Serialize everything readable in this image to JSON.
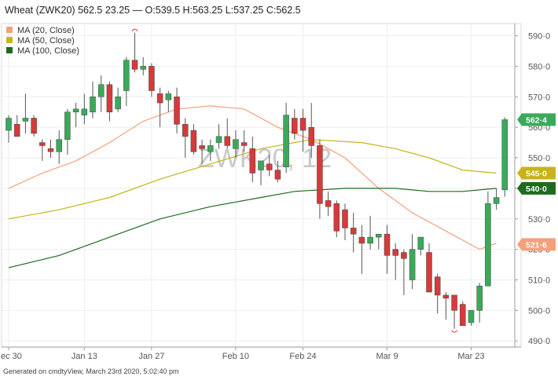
{
  "header": {
    "title": "Wheat (ZWK20) 562.5 23.25 — O:539.5 H:563.25 L:537.25 C:562.5"
  },
  "watermark": "ZWK20, 12",
  "footer": {
    "text": "Generated on cmdtyView, March 23rd 2020, 5:02:40 pm"
  },
  "colors": {
    "up": "#3aaa5a",
    "down": "#d63a3a",
    "ma20": "#f4a07a",
    "ma50": "#c8b418",
    "ma100": "#1f6a1f",
    "last": "#3aaa5a"
  },
  "chart_data": {
    "type": "candlestick",
    "title": "Wheat (ZWK20) 562.5 23.25 — O:539.5 H:563.25 L:537.25 C:562.5",
    "ylim": [
      488,
      594
    ],
    "y_ticks": [
      "590·0",
      "580·0",
      "570·0",
      "560·0",
      "550·0",
      "540·0",
      "530·0",
      "520·0",
      "510·0",
      "500·0",
      "490·0"
    ],
    "y_tick_values": [
      590,
      580,
      570,
      560,
      550,
      540,
      530,
      520,
      510,
      500,
      490
    ],
    "x_labels": [
      {
        "label": "ec 30",
        "index": 0
      },
      {
        "label": "Jan 13",
        "index": 9
      },
      {
        "label": "Jan 27",
        "index": 17
      },
      {
        "label": "Feb 10",
        "index": 27
      },
      {
        "label": "Feb 24",
        "index": 35
      },
      {
        "label": "Mar 9",
        "index": 45
      },
      {
        "label": "Mar 23",
        "index": 55
      }
    ],
    "legend": [
      {
        "name": "MA (20, Close)",
        "color": "#f4a07a"
      },
      {
        "name": "MA (50, Close)",
        "color": "#c8b418"
      },
      {
        "name": "MA (100, Close)",
        "color": "#1f6a1f"
      }
    ],
    "candles": [
      {
        "o": 559,
        "h": 564,
        "l": 555,
        "c": 563
      },
      {
        "o": 561,
        "h": 564,
        "l": 557,
        "c": 557
      },
      {
        "o": 562,
        "h": 571,
        "l": 558,
        "c": 563
      },
      {
        "o": 563,
        "h": 564,
        "l": 557,
        "c": 558
      },
      {
        "o": 555,
        "h": 556,
        "l": 549,
        "c": 554
      },
      {
        "o": 553,
        "h": 556,
        "l": 550,
        "c": 552
      },
      {
        "o": 552,
        "h": 559,
        "l": 548,
        "c": 556
      },
      {
        "o": 556,
        "h": 566,
        "l": 551,
        "c": 565
      },
      {
        "o": 565,
        "h": 568,
        "l": 560,
        "c": 566
      },
      {
        "o": 564,
        "h": 571,
        "l": 561,
        "c": 566
      },
      {
        "o": 565,
        "h": 575,
        "l": 563,
        "c": 570
      },
      {
        "o": 570,
        "h": 577,
        "l": 565,
        "c": 574
      },
      {
        "o": 574,
        "h": 575,
        "l": 562,
        "c": 565
      },
      {
        "o": 566,
        "h": 573,
        "l": 565,
        "c": 570
      },
      {
        "o": 572,
        "h": 583,
        "l": 567,
        "c": 582
      },
      {
        "o": 582,
        "h": 591,
        "l": 578,
        "c": 579
      },
      {
        "o": 579,
        "h": 583,
        "l": 577,
        "c": 580
      },
      {
        "o": 580,
        "h": 581,
        "l": 570,
        "c": 572
      },
      {
        "o": 571,
        "h": 573,
        "l": 560,
        "c": 568
      },
      {
        "o": 569,
        "h": 572,
        "l": 565,
        "c": 571
      },
      {
        "o": 570,
        "h": 573,
        "l": 558,
        "c": 561
      },
      {
        "o": 561,
        "h": 563,
        "l": 550,
        "c": 557
      },
      {
        "o": 559,
        "h": 561,
        "l": 551,
        "c": 552
      },
      {
        "o": 554,
        "h": 556,
        "l": 548,
        "c": 553
      },
      {
        "o": 552,
        "h": 556,
        "l": 549,
        "c": 554
      },
      {
        "o": 555,
        "h": 561,
        "l": 553,
        "c": 557
      },
      {
        "o": 557,
        "h": 563,
        "l": 553,
        "c": 554
      },
      {
        "o": 553,
        "h": 559,
        "l": 550,
        "c": 556
      },
      {
        "o": 555,
        "h": 559,
        "l": 552,
        "c": 554
      },
      {
        "o": 553,
        "h": 557,
        "l": 542,
        "c": 545
      },
      {
        "o": 546,
        "h": 549,
        "l": 541,
        "c": 549
      },
      {
        "o": 548,
        "h": 551,
        "l": 544,
        "c": 546
      },
      {
        "o": 546,
        "h": 549,
        "l": 542,
        "c": 543
      },
      {
        "o": 547,
        "h": 568,
        "l": 545,
        "c": 564
      },
      {
        "o": 563,
        "h": 566,
        "l": 556,
        "c": 558
      },
      {
        "o": 563,
        "h": 566,
        "l": 552,
        "c": 559
      },
      {
        "o": 560,
        "h": 568,
        "l": 550,
        "c": 554
      },
      {
        "o": 554,
        "h": 556,
        "l": 530,
        "c": 535
      },
      {
        "o": 536,
        "h": 539,
        "l": 531,
        "c": 534
      },
      {
        "o": 535,
        "h": 536,
        "l": 524,
        "c": 526
      },
      {
        "o": 533,
        "h": 535,
        "l": 523,
        "c": 527
      },
      {
        "o": 527,
        "h": 532,
        "l": 519,
        "c": 525
      },
      {
        "o": 524,
        "h": 528,
        "l": 512,
        "c": 522
      },
      {
        "o": 522,
        "h": 531,
        "l": 520,
        "c": 524
      },
      {
        "o": 524,
        "h": 525,
        "l": 520,
        "c": 525
      },
      {
        "o": 525,
        "h": 528,
        "l": 512,
        "c": 518
      },
      {
        "o": 520,
        "h": 522,
        "l": 510,
        "c": 518
      },
      {
        "o": 519,
        "h": 520,
        "l": 505,
        "c": 517
      },
      {
        "o": 510,
        "h": 525,
        "l": 507,
        "c": 520
      },
      {
        "o": 520,
        "h": 524,
        "l": 518,
        "c": 524
      },
      {
        "o": 519,
        "h": 522,
        "l": 506,
        "c": 506
      },
      {
        "o": 511,
        "h": 512,
        "l": 499,
        "c": 505
      },
      {
        "o": 505,
        "h": 506,
        "l": 497,
        "c": 504
      },
      {
        "o": 505,
        "h": 505,
        "l": 494,
        "c": 500
      },
      {
        "o": 502,
        "h": 503,
        "l": 496,
        "c": 495
      },
      {
        "o": 496,
        "h": 500,
        "l": 495,
        "c": 500
      },
      {
        "o": 500,
        "h": 509,
        "l": 496,
        "c": 508
      },
      {
        "o": 508,
        "h": 539,
        "l": 508,
        "c": 535
      },
      {
        "o": 535,
        "h": 540,
        "l": 533,
        "c": 537
      },
      {
        "o": 539.5,
        "h": 563.25,
        "l": 537.25,
        "c": 562.5
      }
    ],
    "ma20": [
      [
        0,
        540
      ],
      [
        4,
        545
      ],
      [
        8,
        549
      ],
      [
        12,
        555
      ],
      [
        16,
        562
      ],
      [
        20,
        566
      ],
      [
        24,
        567
      ],
      [
        28,
        566
      ],
      [
        32,
        560
      ],
      [
        36,
        556
      ],
      [
        40,
        550
      ],
      [
        44,
        540
      ],
      [
        48,
        532
      ],
      [
        52,
        526
      ],
      [
        56,
        520
      ],
      [
        58,
        522
      ]
    ],
    "ma50": [
      [
        0,
        530
      ],
      [
        6,
        533
      ],
      [
        12,
        537
      ],
      [
        18,
        543
      ],
      [
        24,
        548
      ],
      [
        30,
        553
      ],
      [
        36,
        556
      ],
      [
        42,
        555
      ],
      [
        46,
        553
      ],
      [
        50,
        550
      ],
      [
        54,
        546
      ],
      [
        58,
        545
      ]
    ],
    "ma100": [
      [
        0,
        514
      ],
      [
        6,
        518
      ],
      [
        12,
        524
      ],
      [
        18,
        530
      ],
      [
        24,
        534
      ],
      [
        30,
        537
      ],
      [
        34,
        539
      ],
      [
        40,
        540
      ],
      [
        46,
        540
      ],
      [
        50,
        539
      ],
      [
        54,
        539
      ],
      [
        58,
        540
      ]
    ],
    "price_tags": [
      {
        "text": "562·4",
        "value": 562.5,
        "color": "#3aaa5a"
      },
      {
        "text": "545·0",
        "value": 545.0,
        "color": "#c8b418"
      },
      {
        "text": "540·0",
        "value": 540.0,
        "color": "#1f6a1f"
      },
      {
        "text": "521·6",
        "value": 521.6,
        "color": "#f4a07a"
      }
    ],
    "high_marker_index": 15,
    "low_marker_index": 53
  }
}
